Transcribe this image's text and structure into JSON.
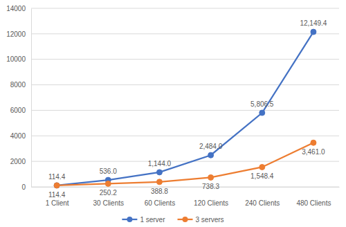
{
  "chart_data": {
    "type": "line",
    "categories": [
      "1 Client",
      "30 Clients",
      "60 Clients",
      "120 Clients",
      "240 Clients",
      "480 Clients"
    ],
    "series": [
      {
        "name": "1 server",
        "color": "#4472c4",
        "marker": "circle",
        "values": [
          114.4,
          536.0,
          1144.0,
          2484.0,
          5806.5,
          12149.4
        ],
        "value_labels": [
          "114.4",
          "536.0",
          "1,144.0",
          "2,484.0",
          "5,806.5",
          "12,149.4"
        ]
      },
      {
        "name": "3 servers",
        "color": "#ed7d31",
        "marker": "circle",
        "values": [
          114.4,
          250.2,
          388.8,
          738.3,
          1548.4,
          3461.0
        ],
        "value_labels": [
          "114.4",
          "250.2",
          "388.8",
          "738.3",
          "1,548.4",
          "3,461.0"
        ]
      }
    ],
    "ylim": [
      0,
      14000
    ],
    "yticks": [
      0,
      2000,
      4000,
      6000,
      8000,
      10000,
      12000,
      14000
    ],
    "grid": true,
    "legend": "bottom",
    "data_labels": true
  }
}
